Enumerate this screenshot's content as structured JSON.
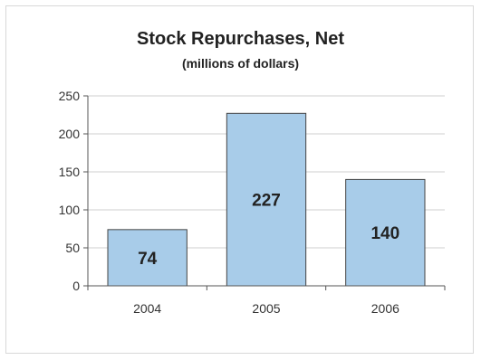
{
  "chart_data": {
    "type": "bar",
    "title": "Stock Repurchases, Net",
    "subtitle": "(millions of dollars)",
    "xlabel": "",
    "ylabel": "",
    "categories": [
      "2004",
      "2005",
      "2006"
    ],
    "values": [
      74,
      227,
      140
    ],
    "data_labels": [
      "74",
      "227",
      "140"
    ],
    "ylim": [
      0,
      250
    ],
    "yticks": [
      0,
      50,
      100,
      150,
      200,
      250
    ],
    "grid": true,
    "legend": "none",
    "bar_color": "#a8cce9",
    "bar_edge_color": "#444444"
  }
}
